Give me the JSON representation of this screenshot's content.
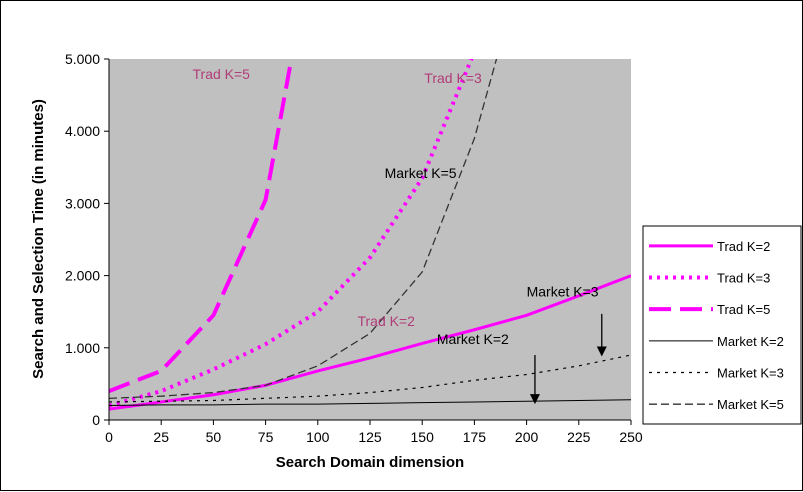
{
  "chart_data": {
    "type": "line",
    "title": "",
    "xlabel": "Search Domain dimension",
    "ylabel": "Search and Selection Time (in minutes)",
    "x": [
      0,
      25,
      50,
      75,
      100,
      125,
      150,
      175,
      200,
      225,
      250
    ],
    "xticks": [
      "0",
      "25",
      "50",
      "75",
      "100",
      "125",
      "150",
      "175",
      "200",
      "225",
      "250"
    ],
    "yticks": [
      {
        "value": 0,
        "label": "0"
      },
      {
        "value": 1,
        "label": "1.000"
      },
      {
        "value": 2,
        "label": "2.000"
      },
      {
        "value": 3,
        "label": "3.000"
      },
      {
        "value": 4,
        "label": "4.000"
      },
      {
        "value": 5,
        "label": "5.000"
      }
    ],
    "xlim": [
      0,
      250
    ],
    "ylim": [
      0,
      5
    ],
    "grid": false,
    "plot_background": "#c0c0c0",
    "legend_position": "right",
    "series": [
      {
        "name": "Trad K=2",
        "color": "#ff00ff",
        "dash": "solid",
        "width": 3,
        "values": [
          0.15,
          0.25,
          0.35,
          0.48,
          0.68,
          0.86,
          1.06,
          1.25,
          1.45,
          1.72,
          2.0
        ]
      },
      {
        "name": "Trad K=3",
        "color": "#ff00ff",
        "dash": "dot",
        "width": 4,
        "values": [
          0.2,
          0.4,
          0.7,
          1.05,
          1.5,
          2.25,
          3.35,
          5.1,
          null,
          null,
          null
        ]
      },
      {
        "name": "Trad K=5",
        "color": "#ff00ff",
        "dash": "longdash",
        "width": 4,
        "values": [
          0.4,
          0.68,
          1.45,
          3.05,
          7.0,
          null,
          null,
          null,
          null,
          null,
          null
        ]
      },
      {
        "name": "Market K=2",
        "color": "#000000",
        "dash": "solid",
        "width": 1,
        "values": [
          0.2,
          0.21,
          0.21,
          0.22,
          0.22,
          0.23,
          0.24,
          0.25,
          0.26,
          0.27,
          0.28
        ]
      },
      {
        "name": "Market K=3",
        "color": "#000000",
        "dash": "dot",
        "width": 1.2,
        "values": [
          0.25,
          0.26,
          0.27,
          0.3,
          0.33,
          0.38,
          0.45,
          0.55,
          0.63,
          0.75,
          0.9
        ]
      },
      {
        "name": "Market K=5",
        "color": "#333333",
        "dash": "dash",
        "width": 1.3,
        "values": [
          0.3,
          0.33,
          0.38,
          0.48,
          0.75,
          1.2,
          2.05,
          3.9,
          6.5,
          null,
          null
        ]
      }
    ],
    "annotations": [
      {
        "text": "Trad K=5",
        "x": 40,
        "y": 4.72,
        "color": "#b03c78"
      },
      {
        "text": "Trad K=3",
        "x": 151,
        "y": 4.67,
        "color": "#b03c78"
      },
      {
        "text": "Market K=5",
        "x": 132,
        "y": 3.35,
        "color": "#000000"
      },
      {
        "text": "Trad K=2",
        "x": 119,
        "y": 1.3,
        "color": "#b03c78"
      },
      {
        "text": "Market K=3",
        "x": 200,
        "y": 1.71,
        "color": "#000000"
      },
      {
        "text": "Market K=2",
        "x": 157,
        "y": 1.05,
        "color": "#000000"
      }
    ],
    "arrows": [
      {
        "x": 236,
        "y_from": 1.47,
        "y_to": 0.88
      },
      {
        "x": 204,
        "y_from": 0.9,
        "y_to": 0.22
      }
    ]
  }
}
